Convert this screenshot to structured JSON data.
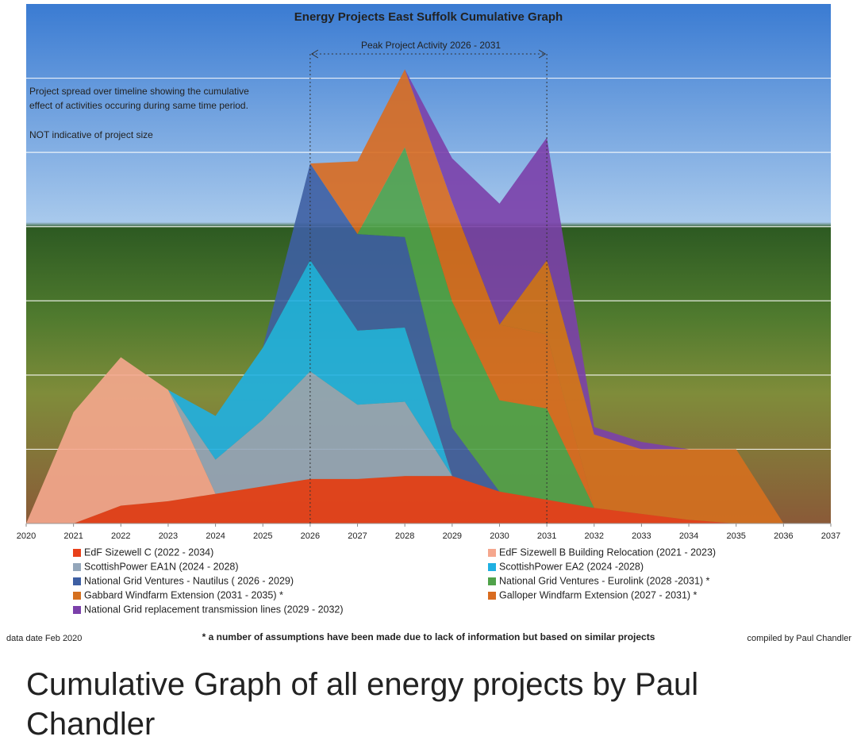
{
  "chart_data": {
    "type": "stacked_area",
    "title": "Energy Projects East Suffolk Cumulative Graph",
    "annotations": {
      "peak": "Peak Project Activity  2026 - 2031",
      "note_lines": [
        "Project spread over timeline showing the cumulative",
        "effect of activities occuring during same time period."
      ],
      "size_note": "NOT indicative of project size"
    },
    "x": [
      2020,
      2021,
      2022,
      2023,
      2024,
      2025,
      2026,
      2027,
      2028,
      2029,
      2030,
      2031,
      2032,
      2033,
      2034,
      2035,
      2036,
      2037
    ],
    "xlim": [
      2020,
      2037
    ],
    "xticks": [
      2020,
      2021,
      2022,
      2023,
      2024,
      2025,
      2026,
      2027,
      2028,
      2029,
      2030,
      2031,
      2032,
      2033,
      2034,
      2035,
      2036,
      2037
    ],
    "ylim": [
      0,
      7
    ],
    "yticks": [
      1,
      2,
      3,
      4,
      5,
      6
    ],
    "grid": true,
    "series": [
      {
        "name": "EdF Sizewell C (2022 - 2034)",
        "color": "#e8401a",
        "values": [
          0,
          0,
          0.24,
          0.3,
          0.4,
          0.5,
          0.6,
          0.6,
          0.64,
          0.64,
          0.43,
          0.32,
          0.21,
          0.13,
          0.05,
          0,
          0,
          0
        ]
      },
      {
        "name": "EdF Sizewell B Building Relocation (2021 - 2023)",
        "color": "#f5a78e",
        "values": [
          0,
          1.5,
          2.0,
          1.5,
          0,
          0,
          0,
          0,
          0,
          0,
          0,
          0,
          0,
          0,
          0,
          0,
          0,
          0
        ]
      },
      {
        "name": "ScottishPower EA1N (2024 - 2028)",
        "color": "#93a6ba",
        "values": [
          0,
          0,
          0,
          0,
          0.46,
          0.9,
          1.45,
          1.0,
          1.0,
          0,
          0,
          0,
          0,
          0,
          0,
          0,
          0,
          0
        ]
      },
      {
        "name": "ScottishPower EA2 (2024 -2028)",
        "color": "#1fb0e2",
        "values": [
          0,
          0,
          0,
          0,
          0.59,
          0.97,
          1.5,
          1.0,
          1.0,
          0,
          0,
          0,
          0,
          0,
          0,
          0,
          0,
          0
        ]
      },
      {
        "name": "National Grid Ventures - Nautilus ( 2026 - 2029)",
        "color": "#3e5fa3",
        "values": [
          0,
          0,
          0,
          0,
          0,
          0,
          1.3,
          1.3,
          1.22,
          0.65,
          0,
          0,
          0,
          0,
          0,
          0,
          0,
          0
        ]
      },
      {
        "name": "National Grid Ventures - Eurolink (2028 -2031) *",
        "color": "#50a24a",
        "values": [
          0,
          0,
          0,
          0,
          0,
          0,
          0,
          0,
          1.21,
          1.7,
          1.23,
          1.23,
          0,
          0,
          0,
          0,
          0,
          0
        ]
      },
      {
        "name": "Galloper Windfarm Extension (2027 - 2031) *",
        "color": "#d96c20",
        "values": [
          0,
          0,
          0,
          0,
          0,
          0,
          0,
          0.98,
          1.05,
          1.34,
          1.02,
          1.0,
          0,
          0,
          0,
          0,
          0,
          0
        ]
      },
      {
        "name": "Gabbard Windfarm Extension (2031 - 2035) *",
        "color": "#d5701f",
        "values": [
          0,
          0,
          0,
          0,
          0,
          0,
          0,
          0,
          0,
          0,
          0,
          1.0,
          0.99,
          0.87,
          0.95,
          1.0,
          0,
          0
        ]
      },
      {
        "name": "National Grid replacement transmission lines (2029 - 2032)",
        "color": "#7b40aa",
        "values": [
          0,
          0,
          0,
          0,
          0,
          0,
          0,
          0,
          0,
          0.59,
          1.63,
          1.65,
          0.1,
          0.1,
          0,
          0,
          0,
          0
        ]
      }
    ]
  },
  "footer": {
    "left": "data date Feb 2020",
    "center": "* a number of assumptions have been made due to lack of information but based on similar projects",
    "right": "compiled by Paul Chandler"
  },
  "caption": "Cumulative Graph of all energy projects by Paul Chandler"
}
